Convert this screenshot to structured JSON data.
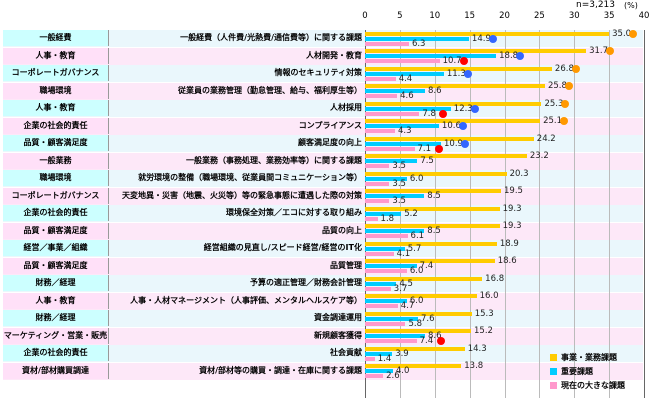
{
  "chart_data": {
    "type": "bar",
    "n_label": "n=3,213",
    "unit": "(%)",
    "xlim": [
      0,
      40
    ],
    "ticks": [
      "0",
      "5",
      "10",
      "15",
      "20",
      "25",
      "30",
      "35",
      "40"
    ],
    "legend_placement": "bottom-right",
    "series": [
      {
        "name": "事業・業務課題",
        "color": "#ffcc00"
      },
      {
        "name": "重要課題",
        "color": "#00ccff"
      },
      {
        "name": "現在の大きな課題",
        "color": "#ff99cc"
      }
    ],
    "rows": [
      {
        "category": "一般経費",
        "issue": "一般経費（人件費/光熱費/通信費等）に関する課題",
        "values": [
          35.0,
          14.9,
          6.3
        ],
        "marks": [
          "orange",
          "blue",
          null
        ]
      },
      {
        "category": "人事・教育",
        "issue": "人材開発・教育",
        "values": [
          31.7,
          18.8,
          10.7
        ],
        "marks": [
          "orange",
          "blue",
          "red"
        ]
      },
      {
        "category": "コーポレートガバナンス",
        "issue": "情報のセキュリティ対策",
        "values": [
          26.8,
          11.3,
          4.4
        ],
        "marks": [
          "orange",
          "blue",
          null
        ]
      },
      {
        "category": "職場環境",
        "issue": "従業員の業務管理（勤怠管理、給与、福利厚生等）",
        "values": [
          25.8,
          8.6,
          4.6
        ],
        "marks": [
          "orange",
          null,
          null
        ]
      },
      {
        "category": "人事・教育",
        "issue": "人材採用",
        "values": [
          25.3,
          12.3,
          7.8
        ],
        "marks": [
          "orange",
          "blue",
          "red"
        ]
      },
      {
        "category": "企業の社会的責任",
        "issue": "コンプライアンス",
        "values": [
          25.1,
          10.6,
          4.3
        ],
        "marks": [
          "orange",
          "blue",
          null
        ]
      },
      {
        "category": "品質・顧客満足度",
        "issue": "顧客満足度の向上",
        "values": [
          24.2,
          10.9,
          7.1
        ],
        "marks": [
          null,
          "blue",
          "red"
        ]
      },
      {
        "category": "一般業務",
        "issue": "一般業務（事務処理、業務効率等）に関する課題",
        "values": [
          23.2,
          7.5,
          3.5
        ],
        "marks": [
          null,
          null,
          null
        ]
      },
      {
        "category": "職場環境",
        "issue": "就労環境の整備（職場環境、従業員間コミュニケーション等）",
        "values": [
          20.3,
          6.0,
          3.5
        ],
        "marks": [
          null,
          null,
          null
        ]
      },
      {
        "category": "コーポレートガバナンス",
        "issue": "天変地異・災害（地震、火災等）等の緊急事態に遭遇した際の対策",
        "values": [
          19.5,
          8.5,
          3.5
        ],
        "marks": [
          null,
          null,
          null
        ]
      },
      {
        "category": "企業の社会的責任",
        "issue": "環境保全対策／エコに対する取り組み",
        "values": [
          19.3,
          5.2,
          1.8
        ],
        "marks": [
          null,
          null,
          null
        ]
      },
      {
        "category": "品質・顧客満足度",
        "issue": "品質の向上",
        "values": [
          19.3,
          8.5,
          6.1
        ],
        "marks": [
          null,
          null,
          null
        ]
      },
      {
        "category": "経営／事業／組織",
        "issue": "経営組織の見直し/スピード経営/経営のIT化",
        "values": [
          18.9,
          5.7,
          4.1
        ],
        "marks": [
          null,
          null,
          null
        ]
      },
      {
        "category": "品質・顧客満足度",
        "issue": "品質管理",
        "values": [
          18.6,
          7.4,
          6.0
        ],
        "marks": [
          null,
          null,
          null
        ]
      },
      {
        "category": "財務／経理",
        "issue": "予算の適正管理／財務会計管理",
        "values": [
          16.8,
          4.5,
          3.7
        ],
        "marks": [
          null,
          null,
          null
        ]
      },
      {
        "category": "人事・教育",
        "issue": "人事・人材マネージメント（人事評価、メンタルヘルスケア等）",
        "values": [
          16.0,
          6.0,
          4.7
        ],
        "marks": [
          null,
          null,
          null
        ]
      },
      {
        "category": "財務／経理",
        "issue": "資金調達運用",
        "values": [
          15.3,
          7.6,
          5.8
        ],
        "marks": [
          null,
          null,
          null
        ]
      },
      {
        "category": "マーケティング・営業・販売",
        "issue": "新規顧客獲得",
        "values": [
          15.2,
          8.6,
          7.4
        ],
        "marks": [
          null,
          null,
          "red"
        ]
      },
      {
        "category": "企業の社会的責任",
        "issue": "社会貢献",
        "values": [
          14.3,
          3.9,
          1.4
        ],
        "marks": [
          null,
          null,
          null
        ]
      },
      {
        "category": "資材/部材購買調達",
        "issue": "資材/部材等の購買・調達・在庫に関する課題",
        "values": [
          13.8,
          4.0,
          2.6
        ],
        "marks": [
          null,
          null,
          null
        ]
      }
    ]
  },
  "colors": {
    "orange": "#ff9900",
    "blue": "#3366ff",
    "red": "#ff0000",
    "row_blue": "#eaf7fc",
    "row_pink": "#fde8f8",
    "cat_blue": "#ccffff",
    "cat_pink": "#ffe0f8"
  }
}
